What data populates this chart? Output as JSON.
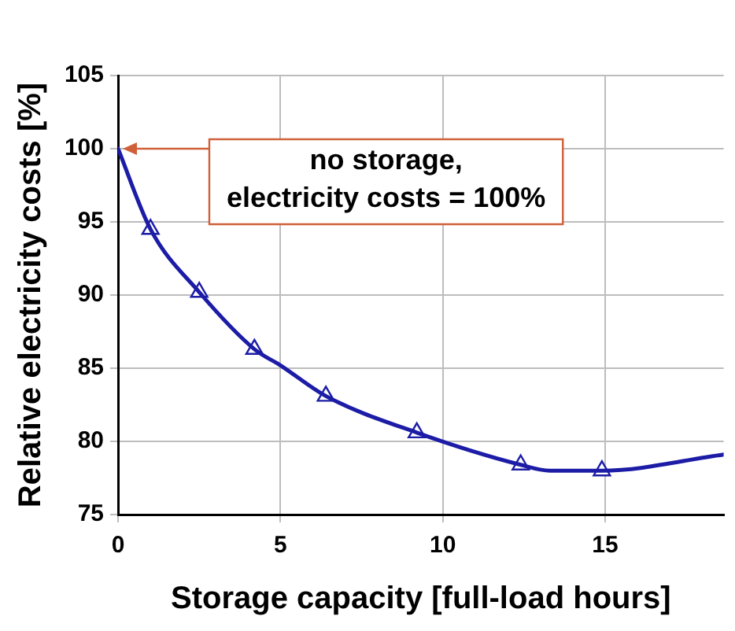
{
  "chart_data": {
    "type": "line",
    "xlabel": "Storage capacity [full-load hours]",
    "ylabel": "Relative electricity costs [%]",
    "xlim": [
      0,
      18.65
    ],
    "xticks": [
      0,
      5,
      10,
      15
    ],
    "ylim": [
      75,
      105
    ],
    "yticks": [
      75,
      80,
      85,
      90,
      95,
      100,
      105
    ],
    "grid": true,
    "legend": false,
    "annotations": [
      "no storage,\nelectricity costs = 100%"
    ],
    "series": [
      {
        "color": "#1c1ca6",
        "marker": "none",
        "line_style": "solid",
        "x": [
          0,
          1,
          2.5,
          4.2,
          5,
          6.4,
          9.2,
          12.4,
          13.3,
          14.9,
          18.65
        ],
        "values": [
          100,
          94.5,
          90.2,
          86.3,
          85.2,
          83.1,
          80.6,
          78.4,
          78.0,
          78.0,
          79.1
        ]
      },
      {
        "type": "scatter",
        "color": "#1c1ca6",
        "marker": "triangle",
        "x": [
          1,
          2.5,
          4.2,
          6.4,
          9.2,
          12.4,
          14.9
        ],
        "values": [
          94.5,
          90.2,
          86.3,
          83.1,
          80.6,
          78.4,
          78.0
        ]
      }
    ]
  }
}
